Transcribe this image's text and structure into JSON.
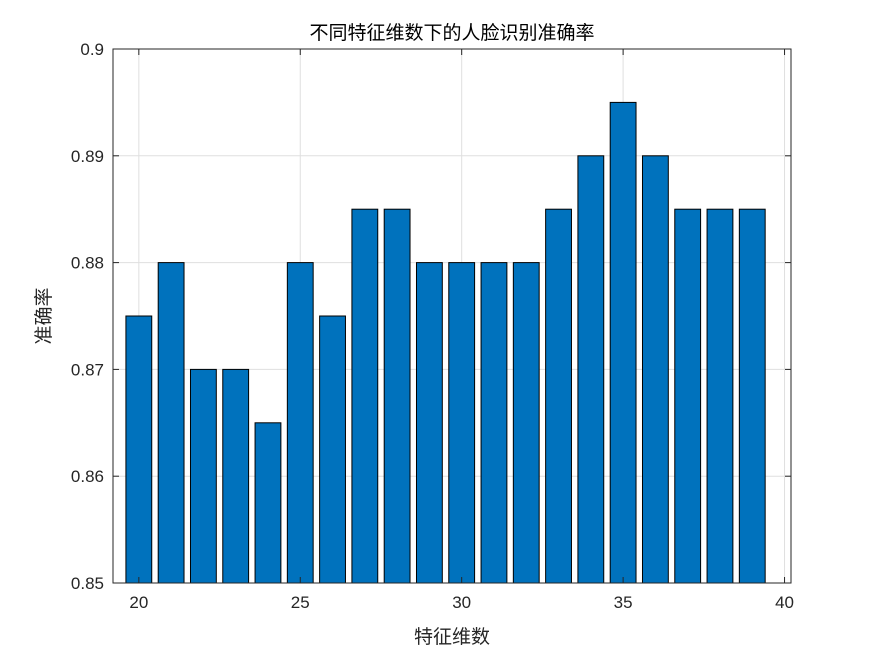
{
  "chart_data": {
    "type": "bar",
    "title": "不同特征维数下的人脸识别准确率",
    "xlabel": "特征维数",
    "ylabel": "准确率",
    "x": [
      20,
      21,
      22,
      23,
      24,
      25,
      26,
      27,
      28,
      29,
      30,
      31,
      32,
      33,
      34,
      35,
      36,
      37,
      38,
      39
    ],
    "values": [
      0.875,
      0.88,
      0.87,
      0.87,
      0.865,
      0.88,
      0.875,
      0.885,
      0.885,
      0.88,
      0.88,
      0.88,
      0.88,
      0.885,
      0.89,
      0.895,
      0.89,
      0.885,
      0.885,
      0.885
    ],
    "xlim": [
      19.2,
      40.2
    ],
    "ylim": [
      0.85,
      0.9
    ],
    "xticks": [
      20,
      25,
      30,
      35,
      40
    ],
    "xtick_labels": [
      "20",
      "25",
      "30",
      "35",
      "40"
    ],
    "yticks": [
      0.85,
      0.86,
      0.87,
      0.88,
      0.89,
      0.9
    ],
    "ytick_labels": [
      "0.85",
      "0.86",
      "0.87",
      "0.88",
      "0.89",
      "0.9"
    ],
    "grid": true,
    "bar_color": "#0072BD"
  }
}
